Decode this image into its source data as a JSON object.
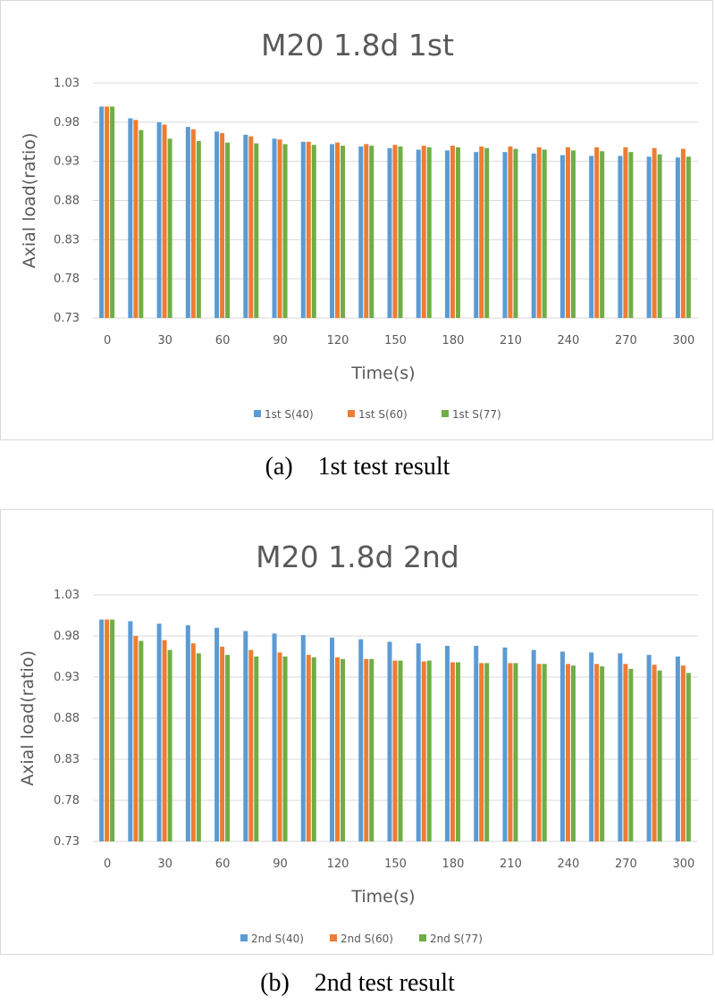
{
  "chart_data": [
    {
      "type": "bar",
      "title": "M20 1.8d 1st",
      "xlabel": "Time(s)",
      "ylabel": "Axial load(ratio)",
      "ylim": [
        0.73,
        1.03
      ],
      "yticks": [
        "1.03",
        "0.98",
        "0.93",
        "0.88",
        "0.83",
        "0.78",
        "0.73"
      ],
      "x": [
        0,
        15,
        30,
        45,
        60,
        75,
        90,
        105,
        120,
        135,
        150,
        165,
        180,
        195,
        210,
        225,
        240,
        255,
        270,
        285,
        300
      ],
      "xtick_labels": [
        "0",
        "30",
        "60",
        "90",
        "120",
        "150",
        "180",
        "210",
        "240",
        "270",
        "300"
      ],
      "legend_position": "bottom",
      "grid": true,
      "series": [
        {
          "name": "1st S(40)",
          "color": "#5B9BD5",
          "values": [
            1.0,
            0.985,
            0.98,
            0.974,
            0.968,
            0.964,
            0.959,
            0.955,
            0.952,
            0.949,
            0.947,
            0.945,
            0.944,
            0.942,
            0.942,
            0.94,
            0.938,
            0.937,
            0.937,
            0.936,
            0.935
          ]
        },
        {
          "name": "1st S(60)",
          "color": "#ED7D31",
          "values": [
            1.0,
            0.983,
            0.977,
            0.971,
            0.966,
            0.962,
            0.958,
            0.955,
            0.954,
            0.952,
            0.951,
            0.95,
            0.95,
            0.949,
            0.949,
            0.948,
            0.948,
            0.948,
            0.948,
            0.947,
            0.946
          ]
        },
        {
          "name": "1st S(77)",
          "color": "#70AD47",
          "values": [
            1.0,
            0.97,
            0.959,
            0.956,
            0.954,
            0.953,
            0.952,
            0.951,
            0.95,
            0.95,
            0.949,
            0.948,
            0.948,
            0.947,
            0.946,
            0.945,
            0.944,
            0.943,
            0.942,
            0.939,
            0.936
          ]
        }
      ]
    },
    {
      "type": "bar",
      "title": "M20 1.8d 2nd",
      "xlabel": "Time(s)",
      "ylabel": "Axial load(ratio)",
      "ylim": [
        0.73,
        1.03
      ],
      "yticks": [
        "1.03",
        "0.98",
        "0.93",
        "0.88",
        "0.83",
        "0.78",
        "0.73"
      ],
      "x": [
        0,
        15,
        30,
        45,
        60,
        75,
        90,
        105,
        120,
        135,
        150,
        165,
        180,
        195,
        210,
        225,
        240,
        255,
        270,
        285,
        300
      ],
      "xtick_labels": [
        "0",
        "30",
        "60",
        "90",
        "120",
        "150",
        "180",
        "210",
        "240",
        "270",
        "300"
      ],
      "legend_position": "bottom",
      "grid": true,
      "series": [
        {
          "name": "2nd S(40)",
          "color": "#5B9BD5",
          "values": [
            1.0,
            0.998,
            0.995,
            0.993,
            0.99,
            0.986,
            0.983,
            0.981,
            0.978,
            0.976,
            0.973,
            0.971,
            0.968,
            0.968,
            0.966,
            0.963,
            0.961,
            0.96,
            0.959,
            0.957,
            0.955
          ]
        },
        {
          "name": "2nd S(60)",
          "color": "#ED7D31",
          "values": [
            1.0,
            0.98,
            0.975,
            0.971,
            0.967,
            0.963,
            0.96,
            0.957,
            0.954,
            0.952,
            0.95,
            0.949,
            0.948,
            0.947,
            0.947,
            0.946,
            0.946,
            0.946,
            0.946,
            0.945,
            0.944
          ]
        },
        {
          "name": "2nd S(77)",
          "color": "#70AD47",
          "values": [
            1.0,
            0.974,
            0.963,
            0.959,
            0.957,
            0.955,
            0.955,
            0.954,
            0.952,
            0.952,
            0.95,
            0.95,
            0.948,
            0.947,
            0.947,
            0.946,
            0.944,
            0.943,
            0.94,
            0.938,
            0.935
          ]
        }
      ]
    }
  ],
  "captions": [
    "(a)    1st test result",
    "(b)    2nd test result"
  ]
}
